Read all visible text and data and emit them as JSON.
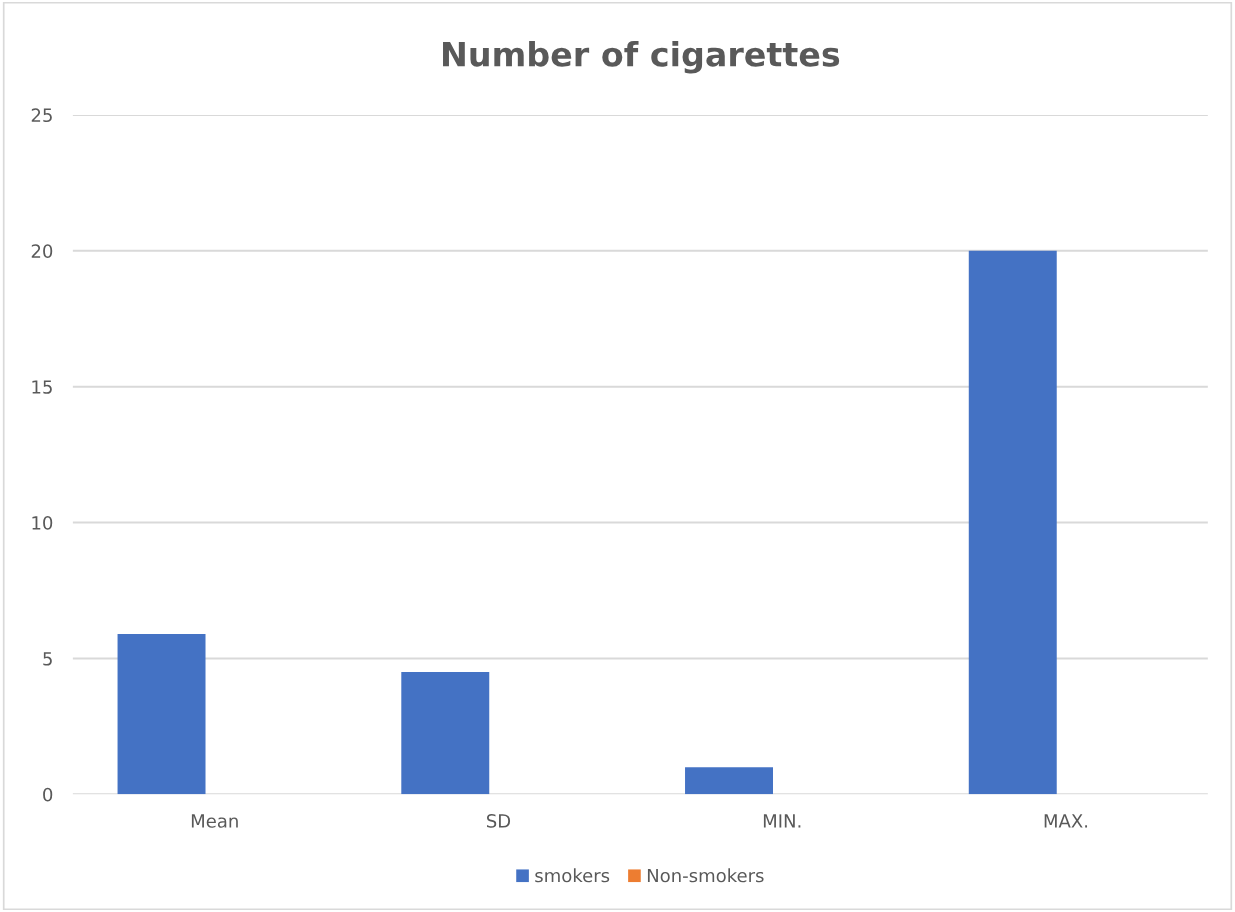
{
  "chart_data": {
    "type": "bar",
    "title": "Number of cigarettes",
    "categories": [
      "Mean",
      "SD",
      "MIN.",
      "MAX."
    ],
    "series": [
      {
        "name": "smokers",
        "color": "#4472c4",
        "values": [
          5.9,
          4.5,
          1,
          20
        ]
      },
      {
        "name": "Non-smokers",
        "color": "#ed7d31",
        "values": [
          0,
          0,
          0,
          0
        ]
      }
    ],
    "ylim": [
      0,
      25
    ],
    "yticks": [
      0,
      5,
      10,
      15,
      20,
      25
    ],
    "grid": "y",
    "legend": "bottom"
  }
}
